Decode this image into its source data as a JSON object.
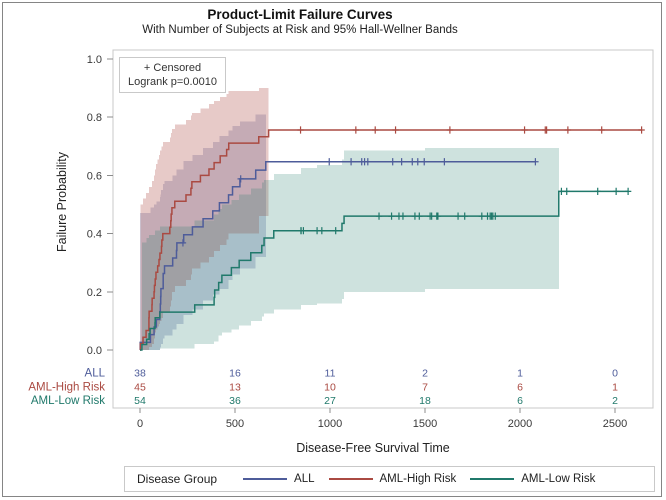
{
  "figure": {
    "title": "Product-Limit Failure Curves",
    "subtitle": "With Number of Subjects at Risk and 95% Hall-Wellner Bands",
    "x_axis_label": "Disease-Free Survival Time",
    "y_axis_label": "Failure Probability"
  },
  "inset": {
    "censored_label": "+ Censored",
    "logrank_label": "Logrank p=0.0010"
  },
  "legend": {
    "title": "Disease Group"
  },
  "chart_data": {
    "type": "line",
    "subtype": "kaplan-meier-failure-step-curves",
    "xlabel": "Disease-Free Survival Time",
    "ylabel": "Failure Probability",
    "xlim": [
      0,
      2700
    ],
    "ylim": [
      0.0,
      1.0
    ],
    "grid": false,
    "x_ticks": [
      0,
      500,
      1000,
      1500,
      2000,
      2500
    ],
    "y_tick_labels": [
      "0.0",
      "0.2",
      "0.4",
      "0.6",
      "0.8",
      "1.0"
    ],
    "y_tick_values": [
      0,
      0.2,
      0.4,
      0.6,
      0.8,
      1.0
    ],
    "at_risk_times": [
      0,
      500,
      1000,
      1500,
      2000,
      2500
    ],
    "groups": [
      {
        "label": "ALL",
        "color": "#4e5c9a",
        "band_fill": "rgba(78,92,154,0.27)",
        "at_risk": [
          38,
          16,
          11,
          2,
          1,
          0
        ],
        "end_time": 2081,
        "steps": [
          [
            1,
            0.026
          ],
          [
            55,
            0.053
          ],
          [
            74,
            0.079
          ],
          [
            86,
            0.105
          ],
          [
            104,
            0.132
          ],
          [
            107,
            0.158
          ],
          [
            109,
            0.184
          ],
          [
            110,
            0.211
          ],
          [
            122,
            0.263
          ],
          [
            129,
            0.289
          ],
          [
            172,
            0.316
          ],
          [
            192,
            0.342
          ],
          [
            194,
            0.368
          ],
          [
            230,
            0.396
          ],
          [
            276,
            0.423
          ],
          [
            332,
            0.451
          ],
          [
            383,
            0.478
          ],
          [
            418,
            0.506
          ],
          [
            466,
            0.533
          ],
          [
            487,
            0.561
          ],
          [
            526,
            0.588
          ],
          [
            609,
            0.618
          ],
          [
            662,
            0.647
          ]
        ],
        "censored": [
          [
            226,
            0.368
          ],
          [
            530,
            0.588
          ],
          [
            996,
            0.647
          ],
          [
            1111,
            0.647
          ],
          [
            1167,
            0.647
          ],
          [
            1182,
            0.647
          ],
          [
            1199,
            0.647
          ],
          [
            1330,
            0.647
          ],
          [
            1377,
            0.647
          ],
          [
            1433,
            0.647
          ],
          [
            1462,
            0.647
          ],
          [
            1496,
            0.647
          ],
          [
            1602,
            0.647
          ],
          [
            2081,
            0.647
          ]
        ],
        "band_end": 662,
        "band": [
          [
            1,
            0,
            0.47
          ],
          [
            55,
            0,
            0.49
          ],
          [
            74,
            0,
            0.5
          ],
          [
            86,
            0,
            0.51
          ],
          [
            104,
            0.005,
            0.525
          ],
          [
            107,
            0.01,
            0.535
          ],
          [
            110,
            0.02,
            0.55
          ],
          [
            122,
            0.04,
            0.57
          ],
          [
            129,
            0.05,
            0.58
          ],
          [
            172,
            0.07,
            0.6
          ],
          [
            192,
            0.09,
            0.62
          ],
          [
            230,
            0.12,
            0.65
          ],
          [
            276,
            0.14,
            0.67
          ],
          [
            332,
            0.17,
            0.695
          ],
          [
            383,
            0.19,
            0.715
          ],
          [
            418,
            0.21,
            0.735
          ],
          [
            466,
            0.24,
            0.755
          ],
          [
            487,
            0.26,
            0.77
          ],
          [
            526,
            0.28,
            0.785
          ],
          [
            609,
            0.32,
            0.81
          ],
          [
            662,
            0.35,
            0.83
          ]
        ]
      },
      {
        "label": "AML-High Risk",
        "color": "#aa4a42",
        "band_fill": "rgba(171,74,65,0.29)",
        "at_risk": [
          45,
          13,
          10,
          7,
          6,
          1
        ],
        "end_time": 2640,
        "steps": [
          [
            2,
            0.022
          ],
          [
            16,
            0.044
          ],
          [
            32,
            0.067
          ],
          [
            47,
            0.111
          ],
          [
            48,
            0.133
          ],
          [
            63,
            0.156
          ],
          [
            64,
            0.178
          ],
          [
            74,
            0.2
          ],
          [
            76,
            0.222
          ],
          [
            80,
            0.244
          ],
          [
            84,
            0.267
          ],
          [
            93,
            0.289
          ],
          [
            100,
            0.311
          ],
          [
            105,
            0.333
          ],
          [
            113,
            0.356
          ],
          [
            115,
            0.378
          ],
          [
            120,
            0.4
          ],
          [
            157,
            0.422
          ],
          [
            162,
            0.444
          ],
          [
            164,
            0.467
          ],
          [
            168,
            0.489
          ],
          [
            183,
            0.511
          ],
          [
            242,
            0.533
          ],
          [
            268,
            0.556
          ],
          [
            273,
            0.578
          ],
          [
            318,
            0.6
          ],
          [
            363,
            0.622
          ],
          [
            390,
            0.644
          ],
          [
            422,
            0.667
          ],
          [
            456,
            0.689
          ],
          [
            467,
            0.711
          ],
          [
            625,
            0.733
          ],
          [
            677,
            0.756
          ]
        ],
        "censored": [
          [
            845,
            0.756
          ],
          [
            1136,
            0.756
          ],
          [
            1238,
            0.756
          ],
          [
            1345,
            0.756
          ],
          [
            1631,
            0.756
          ],
          [
            2024,
            0.756
          ],
          [
            2133,
            0.756
          ],
          [
            2140,
            0.756
          ],
          [
            2252,
            0.756
          ],
          [
            2430,
            0.756
          ],
          [
            2640,
            0.756
          ]
        ],
        "band_end": 677,
        "band": [
          [
            2,
            0,
            0.5
          ],
          [
            16,
            0,
            0.52
          ],
          [
            32,
            0,
            0.54
          ],
          [
            47,
            0.01,
            0.56
          ],
          [
            63,
            0.02,
            0.58
          ],
          [
            74,
            0.04,
            0.6
          ],
          [
            80,
            0.06,
            0.62
          ],
          [
            84,
            0.07,
            0.64
          ],
          [
            93,
            0.08,
            0.655
          ],
          [
            100,
            0.09,
            0.67
          ],
          [
            105,
            0.1,
            0.685
          ],
          [
            113,
            0.11,
            0.7
          ],
          [
            120,
            0.13,
            0.715
          ],
          [
            157,
            0.15,
            0.73
          ],
          [
            162,
            0.17,
            0.745
          ],
          [
            168,
            0.2,
            0.76
          ],
          [
            183,
            0.22,
            0.775
          ],
          [
            242,
            0.24,
            0.79
          ],
          [
            268,
            0.26,
            0.805
          ],
          [
            273,
            0.28,
            0.815
          ],
          [
            318,
            0.3,
            0.83
          ],
          [
            363,
            0.32,
            0.845
          ],
          [
            390,
            0.34,
            0.855
          ],
          [
            422,
            0.36,
            0.87
          ],
          [
            456,
            0.38,
            0.88
          ],
          [
            467,
            0.4,
            0.89
          ],
          [
            625,
            0.46,
            0.9
          ],
          [
            677,
            0.52,
            0.91
          ]
        ]
      },
      {
        "label": "AML-Low Risk",
        "color": "#20796b",
        "band_fill": "rgba(32,121,106,0.22)",
        "at_risk": [
          54,
          36,
          27,
          18,
          6,
          2
        ],
        "end_time": 2569,
        "steps": [
          [
            10,
            0.019
          ],
          [
            35,
            0.037
          ],
          [
            48,
            0.056
          ],
          [
            53,
            0.074
          ],
          [
            79,
            0.093
          ],
          [
            80,
            0.111
          ],
          [
            105,
            0.13
          ],
          [
            288,
            0.155
          ],
          [
            390,
            0.181
          ],
          [
            393,
            0.206
          ],
          [
            414,
            0.232
          ],
          [
            431,
            0.257
          ],
          [
            481,
            0.283
          ],
          [
            522,
            0.308
          ],
          [
            583,
            0.334
          ],
          [
            641,
            0.359
          ],
          [
            653,
            0.385
          ],
          [
            704,
            0.41
          ],
          [
            1063,
            0.435
          ],
          [
            1074,
            0.46
          ],
          [
            2204,
            0.545
          ]
        ],
        "censored": [
          [
            847,
            0.41
          ],
          [
            848,
            0.41
          ],
          [
            860,
            0.41
          ],
          [
            932,
            0.41
          ],
          [
            957,
            0.41
          ],
          [
            1030,
            0.41
          ],
          [
            1258,
            0.46
          ],
          [
            1324,
            0.46
          ],
          [
            1363,
            0.46
          ],
          [
            1384,
            0.46
          ],
          [
            1447,
            0.46
          ],
          [
            1470,
            0.46
          ],
          [
            1527,
            0.46
          ],
          [
            1535,
            0.46
          ],
          [
            1562,
            0.46
          ],
          [
            1568,
            0.46
          ],
          [
            1674,
            0.46
          ],
          [
            1709,
            0.46
          ],
          [
            1799,
            0.46
          ],
          [
            1829,
            0.46
          ],
          [
            1843,
            0.46
          ],
          [
            1850,
            0.46
          ],
          [
            1857,
            0.46
          ],
          [
            1870,
            0.46
          ],
          [
            2218,
            0.545
          ],
          [
            2246,
            0.545
          ],
          [
            2409,
            0.545
          ],
          [
            2506,
            0.545
          ],
          [
            2569,
            0.545
          ]
        ],
        "band_end": 2204,
        "band": [
          [
            10,
            0,
            0.37
          ],
          [
            35,
            0,
            0.385
          ],
          [
            48,
            0,
            0.395
          ],
          [
            79,
            0,
            0.41
          ],
          [
            105,
            0.005,
            0.425
          ],
          [
            288,
            0.02,
            0.445
          ],
          [
            390,
            0.03,
            0.465
          ],
          [
            414,
            0.05,
            0.485
          ],
          [
            431,
            0.06,
            0.5
          ],
          [
            481,
            0.07,
            0.515
          ],
          [
            522,
            0.085,
            0.535
          ],
          [
            583,
            0.1,
            0.555
          ],
          [
            641,
            0.115,
            0.575
          ],
          [
            653,
            0.125,
            0.585
          ],
          [
            704,
            0.14,
            0.605
          ],
          [
            847,
            0.155,
            0.625
          ],
          [
            932,
            0.16,
            0.635
          ],
          [
            1063,
            0.175,
            0.655
          ],
          [
            1074,
            0.2,
            0.685
          ],
          [
            1499,
            0.21,
            0.695
          ],
          [
            2204,
            0.21,
            0.695
          ]
        ]
      }
    ]
  }
}
